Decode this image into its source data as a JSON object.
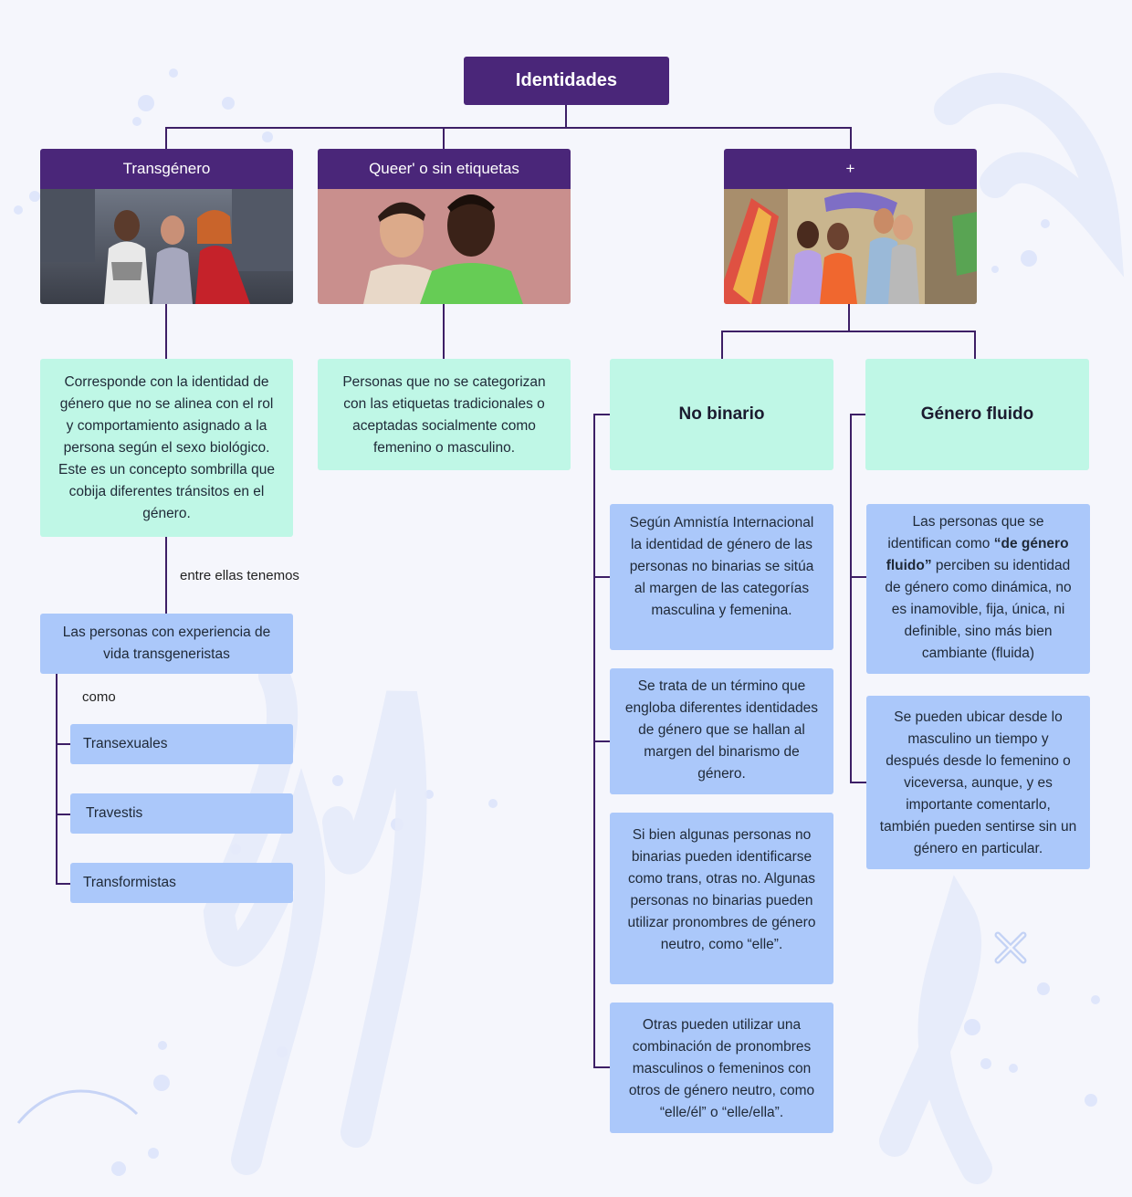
{
  "root": {
    "label": "Identidades"
  },
  "categories": [
    {
      "title": "Transgénero"
    },
    {
      "title": "Queer' o sin etiquetas"
    },
    {
      "title": "+"
    }
  ],
  "transgenero": {
    "definition": "Corresponde con la identidad de género que no se alinea con el rol y comportamiento asignado a la persona según el sexo biológico. Este es un concepto sombrilla que cobija diferentes tránsitos en el género.",
    "link_label": "entre ellas tenemos",
    "group": "Las personas con experiencia de vida transgeneristas",
    "como_label": "como",
    "types": [
      "Transexuales",
      "Travestis",
      "Transformistas"
    ]
  },
  "queer": {
    "definition": "Personas que no se categorizan con las etiquetas tradicionales o aceptadas socialmente como femenino o masculino."
  },
  "no_binario": {
    "title": "No binario",
    "notes": [
      "Según Amnistía Internacional la identidad de género de las personas no binarias se sitúa al margen de las categorías masculina y femenina.",
      "Se trata de un término que engloba diferentes identidades de género que se hallan al margen del binarismo de género.",
      "Si bien algunas personas no binarias pueden identificarse como trans, otras no. Algunas personas no binarias pueden utilizar pronombres de género neutro, como “elle”.",
      "Otras pueden utilizar una combinación de pronombres masculinos o femeninos con otros de género neutro, como “elle/él” o “elle/ella”."
    ]
  },
  "genero_fluido": {
    "title": "Género fluido",
    "note1_before": "Las personas que se identifican como ",
    "note1_bold": "“de género fluido”",
    "note1_after": " perciben su identidad de género como dinámica, no es inamovible, fija, única, ni definible, sino más bien cambiante (fluida)",
    "note2": "Se pueden ubicar desde lo masculino un tiempo y después desde lo femenino o viceversa, aunque, y es importante comentarlo, también pueden sentirse sin un género en particular."
  },
  "colors": {
    "header": "#4a2679",
    "green_box": "#bff7e6",
    "blue_box": "#abc8fa",
    "line": "#3d1f66",
    "background": "#f5f6fc"
  },
  "decoration": {
    "icon": "close-x-icon"
  }
}
